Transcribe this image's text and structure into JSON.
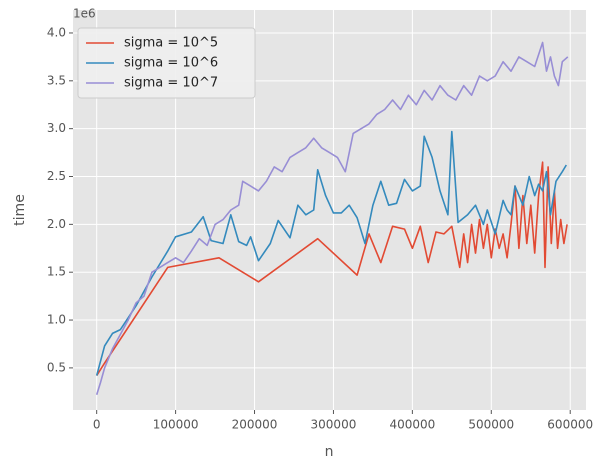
{
  "chart_data": {
    "type": "line",
    "xlabel": "n",
    "ylabel": "time",
    "y_offset_text": "1e6",
    "xlim": [
      -30000,
      620000
    ],
    "ylim": [
      0.06,
      4.24
    ],
    "xticks": [
      0,
      100000,
      200000,
      300000,
      400000,
      500000,
      600000
    ],
    "yticks": [
      0.5,
      {
        "value": 1,
        "label": "1.0"
      },
      1.5,
      {
        "value": 2,
        "label": "2.0"
      },
      2.5,
      {
        "value": 3,
        "label": "3.0"
      },
      3.5,
      {
        "value": 4,
        "label": "4.0"
      }
    ],
    "grid": true,
    "legend": "upper left",
    "series": [
      {
        "name": "sigma = 10^5",
        "color": "#E24A33",
        "x": [
          0,
          10000,
          90000,
          155000,
          205000,
          280000,
          330000,
          345000,
          360000,
          375000,
          390000,
          400000,
          410000,
          420000,
          430000,
          440000,
          450000,
          460000,
          465000,
          470000,
          475000,
          480000,
          485000,
          490000,
          495000,
          500000,
          505000,
          510000,
          515000,
          520000,
          525000,
          530000,
          535000,
          540000,
          545000,
          550000,
          555000,
          560000,
          565000,
          568000,
          572000,
          576000,
          580000,
          584000,
          588000,
          592000,
          596000
        ],
        "values": [
          0.42,
          0.55,
          1.55,
          1.65,
          1.4,
          1.85,
          1.47,
          1.9,
          1.6,
          1.98,
          1.95,
          1.75,
          1.98,
          1.6,
          1.92,
          1.9,
          1.98,
          1.55,
          1.9,
          1.6,
          2.0,
          1.7,
          2.05,
          1.75,
          2.0,
          1.65,
          1.95,
          1.75,
          1.9,
          1.65,
          2.0,
          2.4,
          1.75,
          2.3,
          1.8,
          2.2,
          1.7,
          2.3,
          2.65,
          1.55,
          2.6,
          1.8,
          2.35,
          1.75,
          2.05,
          1.8,
          2.0
        ]
      },
      {
        "name": "sigma = 10^6",
        "color": "#348ABD",
        "x": [
          0,
          10000,
          20000,
          30000,
          50000,
          70000,
          90000,
          100000,
          120000,
          135000,
          145000,
          160000,
          170000,
          180000,
          190000,
          195000,
          205000,
          220000,
          230000,
          245000,
          255000,
          265000,
          275000,
          280000,
          290000,
          300000,
          310000,
          320000,
          330000,
          340000,
          350000,
          360000,
          370000,
          380000,
          390000,
          400000,
          410000,
          415000,
          425000,
          435000,
          445000,
          450000,
          458000,
          470000,
          480000,
          490000,
          495000,
          505000,
          515000,
          520000,
          525000,
          530000,
          540000,
          548000,
          555000,
          560000,
          565000,
          570000,
          575000,
          582000,
          590000,
          595000
        ],
        "values": [
          0.42,
          0.73,
          0.86,
          0.9,
          1.15,
          1.45,
          1.72,
          1.87,
          1.92,
          2.08,
          1.83,
          1.8,
          2.1,
          1.82,
          1.78,
          1.87,
          1.62,
          1.8,
          2.04,
          1.86,
          2.2,
          2.1,
          2.15,
          2.57,
          2.3,
          2.12,
          2.12,
          2.2,
          2.07,
          1.8,
          2.2,
          2.45,
          2.2,
          2.22,
          2.47,
          2.35,
          2.4,
          2.92,
          2.7,
          2.35,
          2.1,
          2.97,
          2.02,
          2.1,
          2.2,
          2.0,
          2.15,
          1.9,
          2.25,
          2.15,
          2.1,
          2.4,
          2.2,
          2.5,
          2.3,
          2.42,
          2.35,
          2.55,
          2.1,
          2.45,
          2.55,
          2.62
        ]
      },
      {
        "name": "sigma = 10^7",
        "color": "#988ED5",
        "x": [
          0,
          5000,
          10000,
          20000,
          30000,
          40000,
          50000,
          60000,
          70000,
          80000,
          90000,
          100000,
          110000,
          120000,
          130000,
          140000,
          150000,
          160000,
          170000,
          180000,
          185000,
          195000,
          205000,
          215000,
          225000,
          235000,
          245000,
          255000,
          265000,
          275000,
          285000,
          295000,
          305000,
          315000,
          325000,
          335000,
          345000,
          355000,
          365000,
          375000,
          385000,
          395000,
          405000,
          415000,
          425000,
          435000,
          445000,
          455000,
          465000,
          475000,
          485000,
          495000,
          505000,
          515000,
          525000,
          535000,
          545000,
          555000,
          565000,
          570000,
          575000,
          580000,
          585000,
          590000,
          597000
        ],
        "values": [
          0.22,
          0.35,
          0.5,
          0.7,
          0.85,
          1.0,
          1.18,
          1.25,
          1.5,
          1.55,
          1.6,
          1.65,
          1.6,
          1.72,
          1.85,
          1.78,
          2.0,
          2.05,
          2.15,
          2.2,
          2.45,
          2.4,
          2.35,
          2.45,
          2.6,
          2.55,
          2.7,
          2.75,
          2.8,
          2.9,
          2.8,
          2.75,
          2.7,
          2.55,
          2.95,
          3.0,
          3.05,
          3.15,
          3.2,
          3.3,
          3.2,
          3.35,
          3.25,
          3.4,
          3.3,
          3.45,
          3.35,
          3.3,
          3.45,
          3.35,
          3.55,
          3.5,
          3.55,
          3.7,
          3.6,
          3.75,
          3.7,
          3.65,
          3.9,
          3.6,
          3.75,
          3.55,
          3.45,
          3.7,
          3.75
        ]
      }
    ]
  }
}
